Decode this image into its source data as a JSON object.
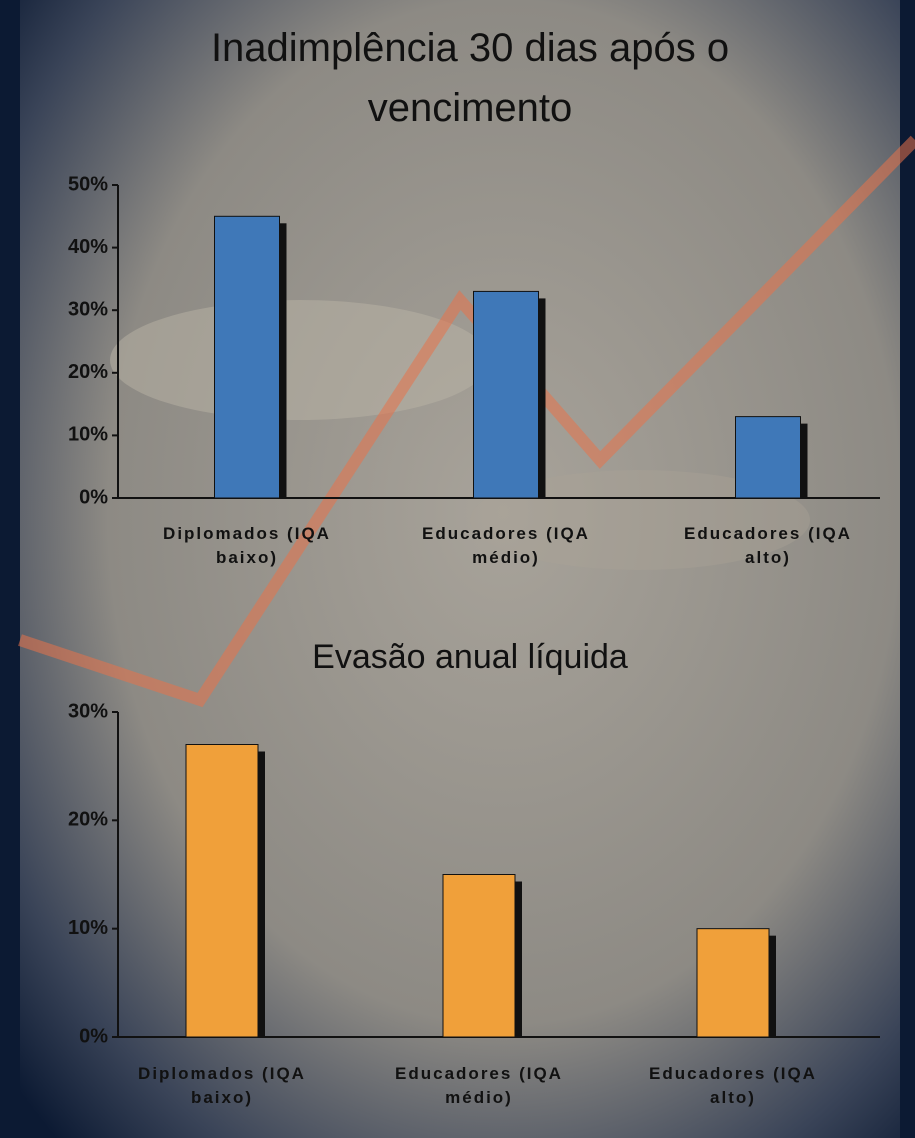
{
  "chart_data": [
    {
      "type": "bar",
      "title": "Inadimplência 30 dias após o vencimento",
      "categories": [
        "Diplomados (IQA baixo)",
        "Educadores (IQA médio)",
        "Educadores (IQA alto)"
      ],
      "values": [
        45,
        33,
        13
      ],
      "color": "#3f78b8",
      "ylim": [
        0,
        50
      ],
      "yticks": [
        {
          "value": 0,
          "label": "0%"
        },
        {
          "value": 10,
          "label": "10%"
        },
        {
          "value": 20,
          "label": "20%"
        },
        {
          "value": 30,
          "label": "30%"
        },
        {
          "value": 40,
          "label": "40%"
        },
        {
          "value": 50,
          "label": "50%"
        }
      ]
    },
    {
      "type": "bar",
      "title": "Evasão anual líquida",
      "categories": [
        "Diplomados (IQA baixo)",
        "Educadores (IQA médio)",
        "Educadores (IQA alto)"
      ],
      "values": [
        27,
        15,
        10
      ],
      "color": "#f0a03a",
      "ylim": [
        0,
        30
      ],
      "yticks": [
        {
          "value": 0,
          "label": "0%"
        },
        {
          "value": 10,
          "label": "10%"
        },
        {
          "value": 20,
          "label": "20%"
        },
        {
          "value": 30,
          "label": "30%"
        }
      ]
    }
  ]
}
